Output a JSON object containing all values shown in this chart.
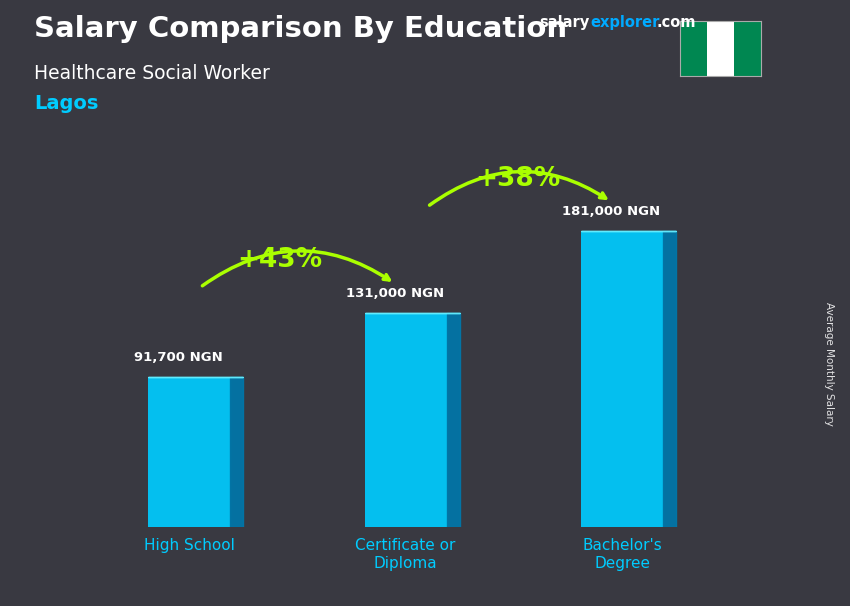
{
  "title_part1": "Salary Comparison By Education",
  "subtitle1": "Healthcare Social Worker",
  "subtitle2": "Lagos",
  "categories": [
    "High School",
    "Certificate or\nDiploma",
    "Bachelor's\nDegree"
  ],
  "values": [
    91700,
    131000,
    181000
  ],
  "value_labels": [
    "91,700 NGN",
    "131,000 NGN",
    "181,000 NGN"
  ],
  "bar_color_face": "#00ccff",
  "bar_color_side": "#0077aa",
  "bar_color_top": "#66eeff",
  "pct_labels": [
    "+43%",
    "+38%"
  ],
  "pct_color": "#aaff00",
  "bg_color": "#555560",
  "overlay_color": "#222228",
  "text_color_white": "#ffffff",
  "text_color_cyan": "#00ccff",
  "salary_color": "#ffffff",
  "explorer_color": "#00aaff",
  "com_color": "#ffffff",
  "ylabel": "Average Monthly Salary",
  "ylim": [
    0,
    215000
  ],
  "bar_width": 0.38,
  "side_depth": 0.06,
  "nigeria_flag_green": "#008751",
  "nigeria_flag_white": "#ffffff",
  "arrow_color": "#aaff00",
  "value_label_color": "#ffffff",
  "x_label_color": "#00ccff"
}
